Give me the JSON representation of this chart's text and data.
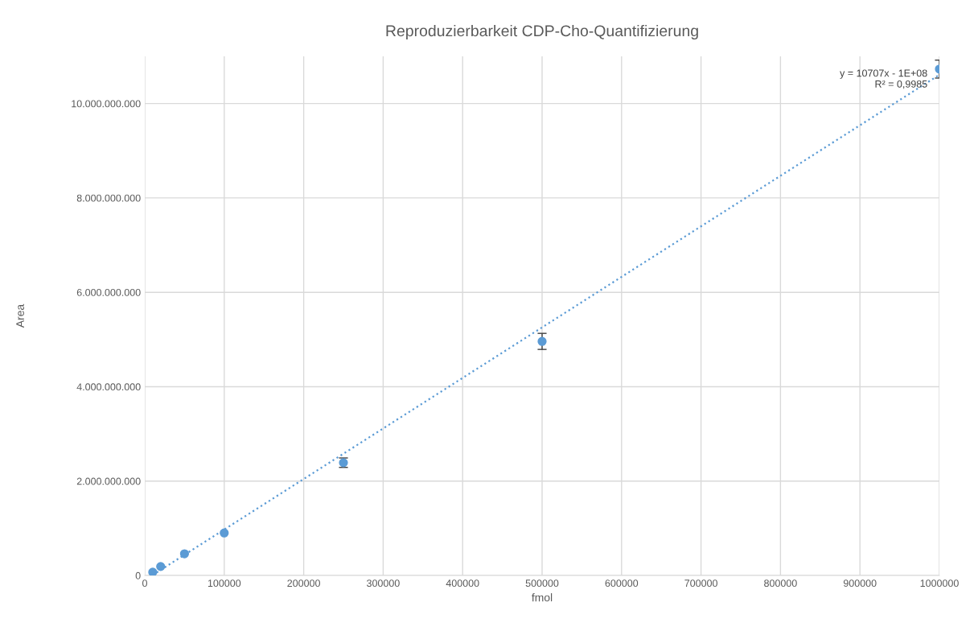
{
  "chart_data": {
    "type": "scatter",
    "title": "Reproduzierbarkeit CDP-Cho-Quantifizierung",
    "xlabel": "fmol",
    "ylabel": "Area",
    "series": [
      {
        "color": "#5b9bd5",
        "marker": "circle",
        "x": [
          10000,
          20000,
          50000,
          100000,
          250000,
          500000,
          1000000
        ],
        "values": [
          70000000,
          190000000,
          460000000,
          900000000,
          2390000000,
          4960000000,
          10730000000
        ],
        "errors": [
          null,
          null,
          null,
          null,
          100000000,
          170000000,
          190000000
        ]
      },
      {
        "type": "line",
        "color": "#5b9bd5",
        "line_style": "dotted",
        "marker": "none",
        "x": [
          10000,
          1000000
        ],
        "values": [
          10000000,
          10610000000
        ]
      }
    ],
    "annotations": [
      "y = 10707x - 1E+08\nR² = 0,9985"
    ],
    "xlim": [
      0,
      1000000
    ],
    "xticks": [
      0,
      100000,
      200000,
      300000,
      400000,
      500000,
      600000,
      700000,
      800000,
      900000,
      1000000
    ],
    "ylim": [
      0,
      11000000000
    ],
    "yticks": [
      {
        "value": 0,
        "label": "0"
      },
      {
        "value": 2000000000,
        "label": "2.000.000.000"
      },
      {
        "value": 4000000000,
        "label": "4.000.000.000"
      },
      {
        "value": 6000000000,
        "label": "6.000.000.000"
      },
      {
        "value": 8000000000,
        "label": "8.000.000.000"
      },
      {
        "value": 10000000000,
        "label": "10.000.000.000"
      }
    ],
    "grid": true,
    "legend": false
  }
}
